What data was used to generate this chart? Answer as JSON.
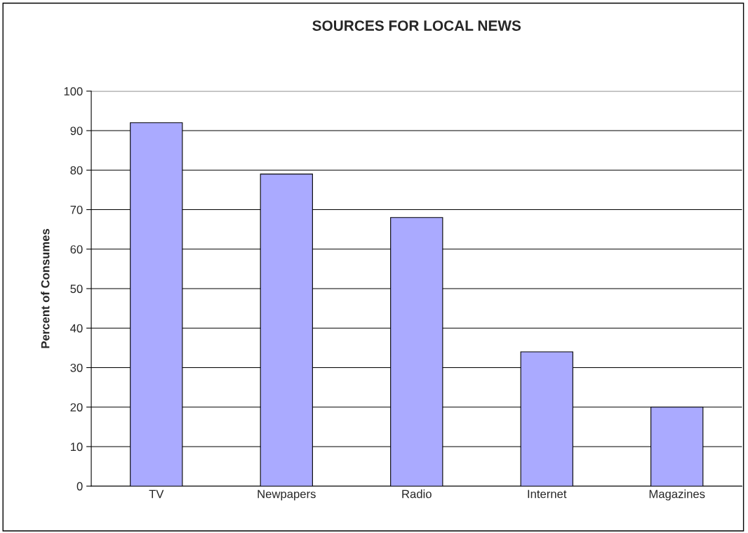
{
  "chart_data": {
    "type": "bar",
    "title": "SOURCES FOR LOCAL NEWS",
    "ylabel": "Percent of Consumes",
    "categories": [
      "TV",
      "Newpapers",
      "Radio",
      "Internet",
      "Magazines"
    ],
    "values": [
      92,
      79,
      68,
      34,
      20
    ],
    "color": "#aaaaff",
    "ylim": [
      0,
      100
    ],
    "yticks": [
      0,
      10,
      20,
      30,
      40,
      50,
      60,
      70,
      80,
      90,
      100
    ],
    "grid": "y",
    "legend": false
  }
}
